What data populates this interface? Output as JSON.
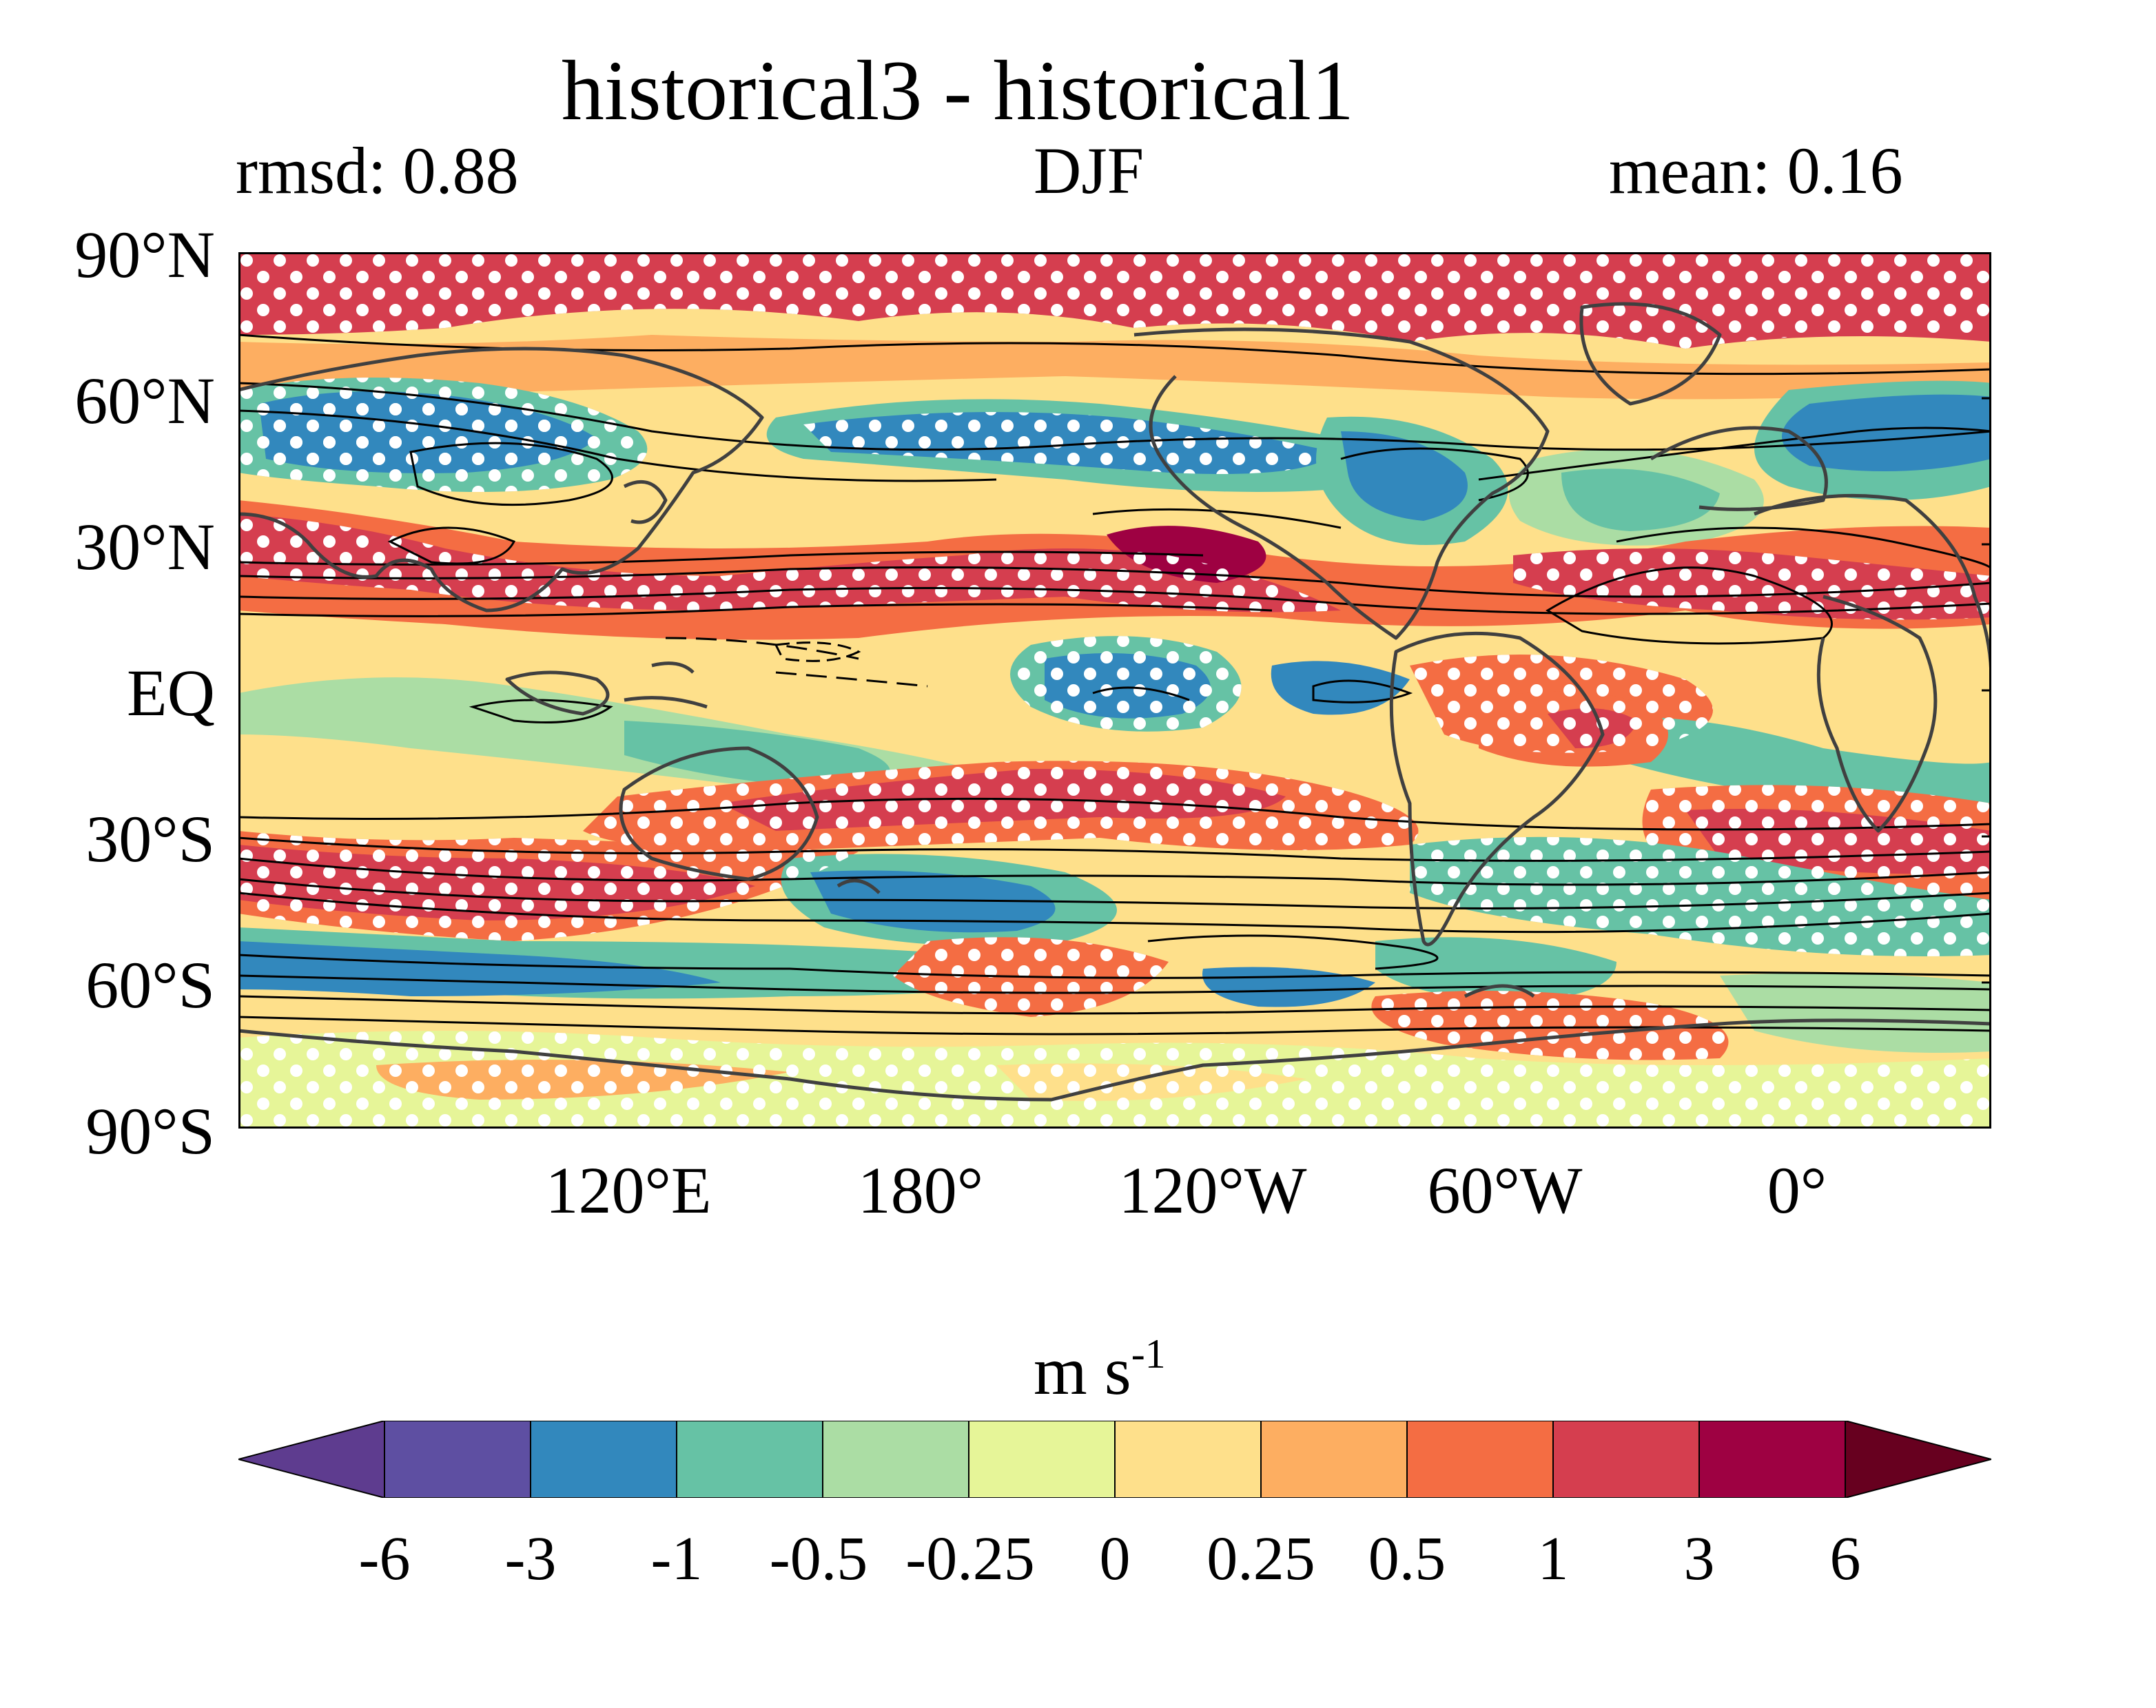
{
  "figure": {
    "title": "historical3 - historical1",
    "rmsd_label": "rmsd: 0.88",
    "season": "DJF",
    "mean_label": "mean: 0.16"
  },
  "map": {
    "lat_labels": [
      "90°N",
      "60°N",
      "30°N",
      "EQ",
      "30°S",
      "60°S",
      "90°S"
    ],
    "lon_labels": [
      "120°E",
      "180°",
      "120°W",
      "60°W",
      "0°"
    ],
    "lon_range": [
      40,
      400
    ],
    "lat_range": [
      -90,
      90
    ],
    "projection": "PlateCarree",
    "stippling": "white dots",
    "contours": "black lines"
  },
  "colorbar": {
    "unit": "m s",
    "unit_exponent": "-1",
    "tick_labels": [
      "-6",
      "-3",
      "-1",
      "-0.5",
      "-0.25",
      "0",
      "0.25",
      "0.5",
      "1",
      "3",
      "6"
    ],
    "colors": [
      "#5e3c8f",
      "#5e4fa2",
      "#3288bd",
      "#66c2a5",
      "#abdda4",
      "#e6f598",
      "#fee08b",
      "#fdae61",
      "#f46d43",
      "#d53e4f",
      "#9e0142",
      "#67001f"
    ],
    "extend": "both"
  }
}
